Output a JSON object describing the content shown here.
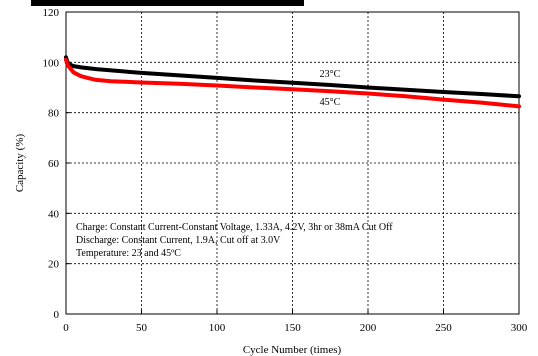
{
  "chart_data": {
    "type": "line",
    "xlabel": "Cycle Number (times)",
    "ylabel": "Capacity (%)",
    "xlim": [
      0,
      300
    ],
    "ylim": [
      0,
      120
    ],
    "xticks": [
      0,
      50,
      100,
      150,
      200,
      250,
      300
    ],
    "yticks": [
      0,
      20,
      40,
      60,
      80,
      100,
      120
    ],
    "grid": true,
    "series": [
      {
        "name": "23°C",
        "color": "#000000",
        "x": [
          0,
          1,
          3,
          5,
          10,
          20,
          30,
          50,
          75,
          100,
          125,
          150,
          175,
          200,
          225,
          250,
          275,
          300
        ],
        "y": [
          102,
          100,
          99,
          98.5,
          98,
          97.3,
          96.8,
          95.8,
          94.8,
          93.8,
          92.8,
          91.9,
          91.0,
          90.0,
          89.1,
          88.2,
          87.4,
          86.5
        ]
      },
      {
        "name": "45°C",
        "color": "#ff0000",
        "x": [
          0,
          1,
          3,
          5,
          10,
          15,
          20,
          30,
          50,
          75,
          100,
          125,
          150,
          175,
          200,
          225,
          250,
          275,
          300
        ],
        "y": [
          101,
          99,
          97.5,
          96,
          94.5,
          93.7,
          93,
          92.5,
          92,
          91.5,
          90.8,
          90.0,
          89.3,
          88.5,
          87.6,
          86.5,
          85.2,
          84.0,
          82.5
        ]
      }
    ],
    "annotations": [
      "Charge: Constant Current-Constant Voltage, 1.33A, 4.2V, 3hr or 38mA Cut Off",
      "Discharge: Constant Current, 1.9A, Cut off at 3.0V",
      "Temperature: 23 and 45ºC"
    ]
  }
}
